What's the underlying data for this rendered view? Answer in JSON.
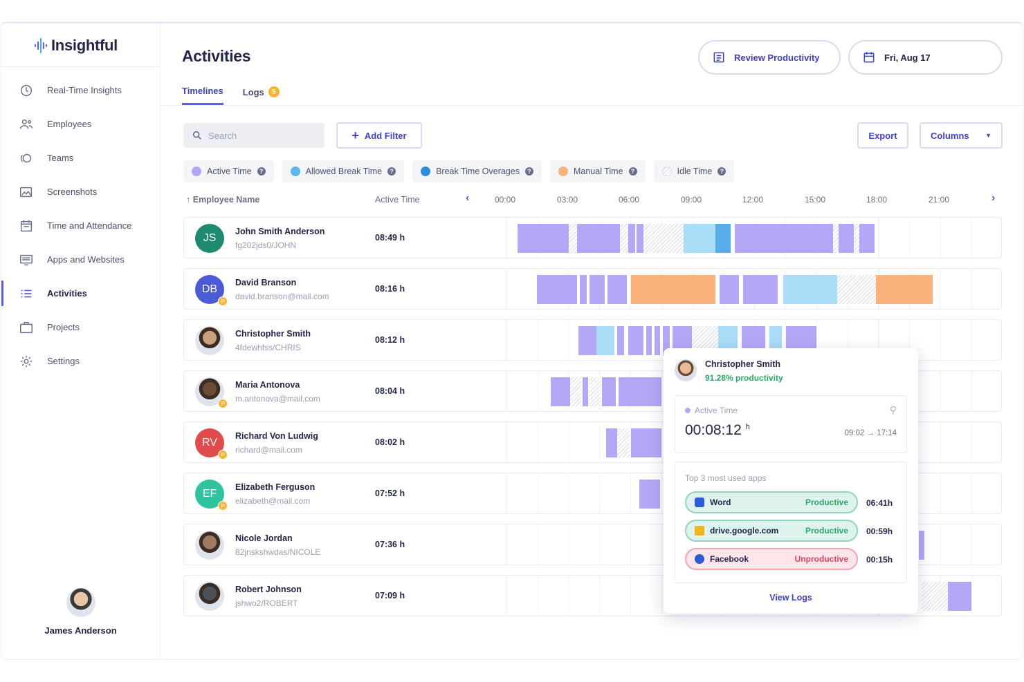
{
  "app": {
    "name": "Insightful"
  },
  "sidebar": {
    "items": [
      {
        "label": "Real-Time Insights",
        "icon": "clock-icon"
      },
      {
        "label": "Employees",
        "icon": "users-icon"
      },
      {
        "label": "Teams",
        "icon": "teams-icon"
      },
      {
        "label": "Screenshots",
        "icon": "image-icon"
      },
      {
        "label": "Time and Attendance",
        "icon": "calendar-icon"
      },
      {
        "label": "Apps and Websites",
        "icon": "monitor-icon"
      },
      {
        "label": "Activities",
        "icon": "list-icon",
        "active": true
      },
      {
        "label": "Projects",
        "icon": "briefcase-icon"
      },
      {
        "label": "Settings",
        "icon": "gear-icon"
      }
    ],
    "user": {
      "name": "James Anderson"
    }
  },
  "header": {
    "title": "Activities",
    "review_label": "Review Productivity",
    "date_label": "Fri, Aug 17"
  },
  "tabs": [
    {
      "label": "Timelines",
      "active": true
    },
    {
      "label": "Logs",
      "badge": "5"
    }
  ],
  "toolbar": {
    "search_placeholder": "Search",
    "add_filter_label": "Add Filter",
    "export_label": "Export",
    "columns_label": "Columns"
  },
  "legend": [
    {
      "label": "Active Time",
      "color": "#b3a8f5"
    },
    {
      "label": "Allowed Break Time",
      "color": "#a9dcf6"
    },
    {
      "label": "Break Time Overages",
      "color": "#2a8ee0"
    },
    {
      "label": "Manual Time",
      "color": "#fbb27a"
    },
    {
      "label": "Idle Time",
      "color": "hatched"
    }
  ],
  "table": {
    "col_name": "Employee Name",
    "col_active": "Active Time",
    "hours": [
      "00:00",
      "03:00",
      "06:00",
      "09:00",
      "12:00",
      "15:00",
      "18:00",
      "21:00"
    ],
    "rows": [
      {
        "initials": "JS",
        "avatar_color": "#1f8a70",
        "name": "John Smith Anderson",
        "sub": "fg202jds0/JOHN",
        "active": "08:49 h",
        "photo": false,
        "p": false
      },
      {
        "initials": "DB",
        "avatar_color": "#4b5bd6",
        "name": "David Branson",
        "sub": "david.branson@mail.com",
        "active": "08:16 h",
        "photo": false,
        "p": true
      },
      {
        "initials": "",
        "avatar_color": "#c9a07a",
        "name": "Christopher Smith",
        "sub": "4fdewhfss/CHRIS",
        "active": "08:12 h",
        "photo": true,
        "p": false
      },
      {
        "initials": "",
        "avatar_color": "#6b4a36",
        "name": "Maria Antonova",
        "sub": "m.antonova@mail.com",
        "active": "08:04 h",
        "photo": true,
        "p": true
      },
      {
        "initials": "RV",
        "avatar_color": "#e24b4b",
        "name": "Richard Von Ludwig",
        "sub": "richard@mail.com",
        "active": "08:02 h",
        "photo": false,
        "p": true
      },
      {
        "initials": "EF",
        "avatar_color": "#2ec4a0",
        "name": "Elizabeth Ferguson",
        "sub": "elizabeth@mail.com",
        "active": "07:52 h",
        "photo": false,
        "p": true
      },
      {
        "initials": "",
        "avatar_color": "#a07a62",
        "name": "Nicole Jordan",
        "sub": "82jnskshwdas/NICOLE",
        "active": "07:36 h",
        "photo": true,
        "p": false
      },
      {
        "initials": "",
        "avatar_color": "#4a5058",
        "name": "Robert Johnson",
        "sub": "jshwo2/ROBERT",
        "active": "07:09 h",
        "photo": true,
        "p": false
      }
    ]
  },
  "popup": {
    "name": "Christopher Smith",
    "productivity": "91.28% productivity",
    "active_label": "Active Time",
    "active_value": "00:08:12",
    "active_unit": "h",
    "range_start": "09:02",
    "range_end": "17:14",
    "apps_label": "Top 3 most used apps",
    "apps": [
      {
        "name": "Word",
        "status": "Productive",
        "duration": "06:41h",
        "kind": "good",
        "icon_color": "#2b5bd6"
      },
      {
        "name": "drive.google.com",
        "status": "Productive",
        "duration": "00:59h",
        "kind": "good",
        "icon_color": "#f2b51c"
      },
      {
        "name": "Facebook",
        "status": "Unproductive",
        "duration": "00:15h",
        "kind": "bad",
        "icon_color": "#2b5bd6"
      }
    ],
    "view_logs": "View Logs"
  }
}
